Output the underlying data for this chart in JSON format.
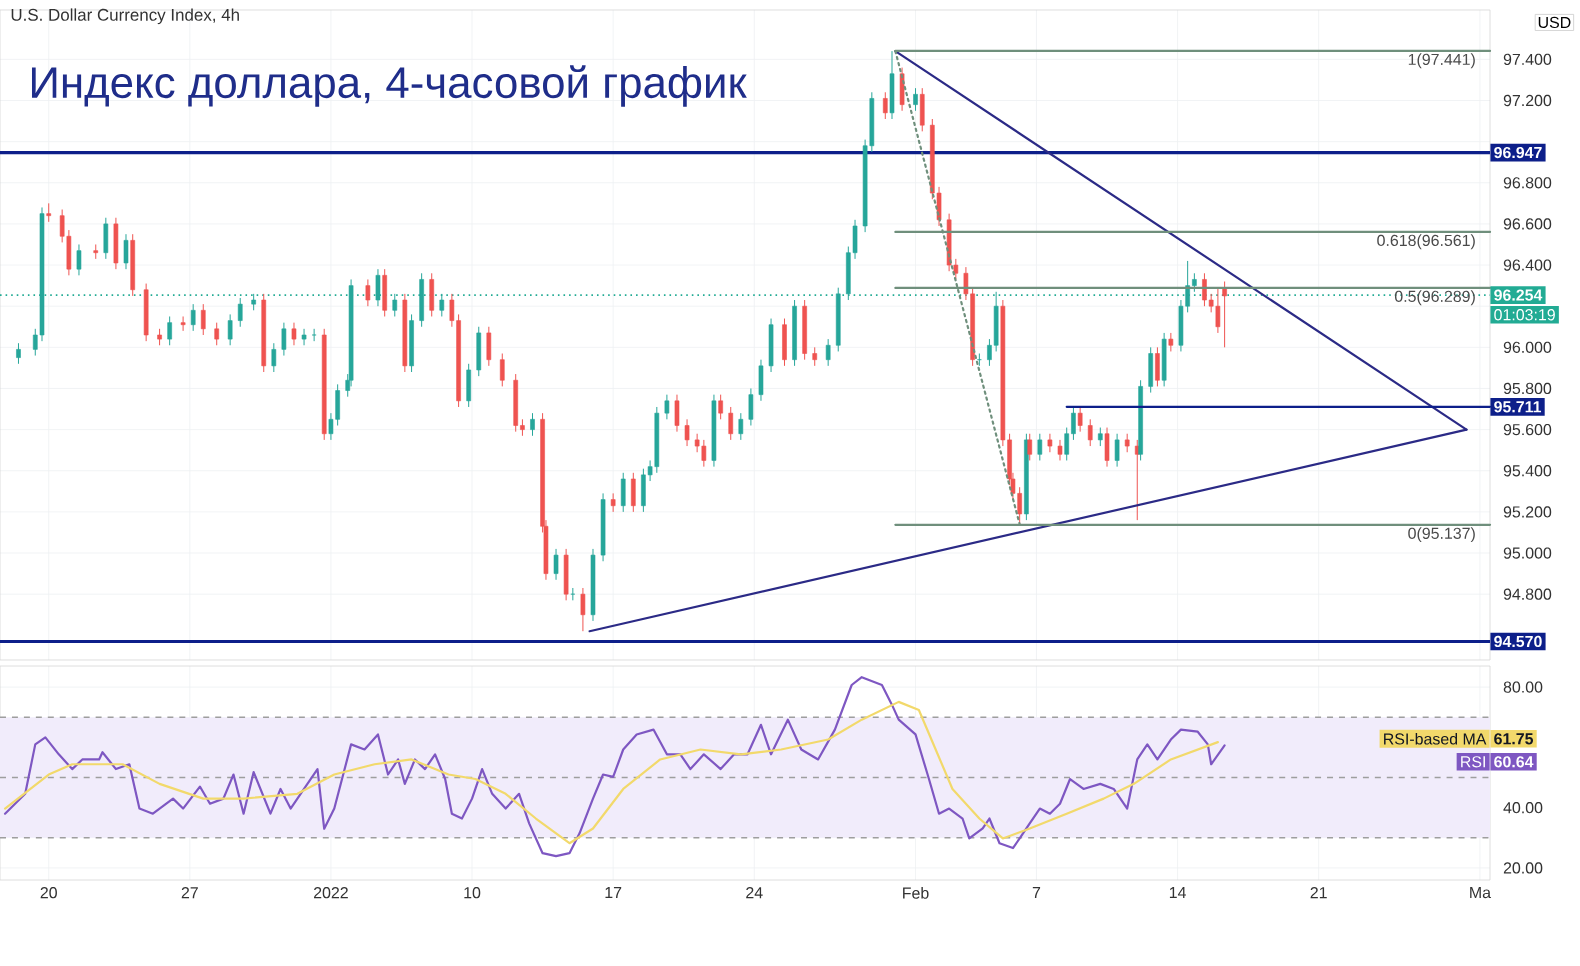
{
  "chart_data": [
    {
      "type": "candlestick",
      "title": "Индекс доллара, 4-часовой график",
      "subtitle": "U.S. Dollar Currency Index, 4h",
      "ylabel": "USD",
      "x": [
        "2021-12-18T12:00",
        "2021-12-19T08:00",
        "2021-12-19T16:00",
        "2021-12-20T00:00",
        "2021-12-20T16:00",
        "2021-12-21T00:00",
        "2021-12-21T12:00",
        "2021-12-22T08:00",
        "2021-12-22T20:00",
        "2021-12-23T08:00",
        "2021-12-23T20:00",
        "2021-12-24T04:00",
        "2021-12-24T20:00",
        "2021-12-25T12:00",
        "2021-12-26T00:00",
        "2021-12-26T16:00",
        "2021-12-27T04:00",
        "2021-12-27T16:00",
        "2021-12-28T08:00",
        "2021-12-29T00:00",
        "2021-12-29T12:00",
        "2021-12-30T04:00",
        "2021-12-30T16:00",
        "2021-12-31T04:00",
        "2021-12-31T16:00",
        "2022-01-01T04:00",
        "2022-01-01T16:00",
        "2022-01-02T04:00",
        "2022-01-02T16:00",
        "2022-01-03T00:00",
        "2022-01-03T08:00",
        "2022-01-03T20:00",
        "2022-01-04T00:00",
        "2022-01-04T20:00",
        "2022-01-05T08:00",
        "2022-01-05T16:00",
        "2022-01-06T04:00",
        "2022-01-06T16:00",
        "2022-01-07T00:00",
        "2022-01-07T12:00",
        "2022-01-08T00:00",
        "2022-01-08T12:00",
        "2022-01-09T00:00",
        "2022-01-09T08:00",
        "2022-01-09T20:00",
        "2022-01-10T08:00",
        "2022-01-10T20:00",
        "2022-01-11T12:00",
        "2022-01-12T04:00",
        "2022-01-12T12:00",
        "2022-01-13T00:00",
        "2022-01-13T12:00",
        "2022-01-13T16:00",
        "2022-01-14T04:00",
        "2022-01-14T16:00",
        "2022-01-15T00:00",
        "2022-01-15T12:00",
        "2022-01-16T00:00",
        "2022-01-16T12:00",
        "2022-01-17T00:00",
        "2022-01-17T12:00",
        "2022-01-18T00:00",
        "2022-01-18T12:00",
        "2022-01-18T20:00",
        "2022-01-19T04:00",
        "2022-01-19T16:00",
        "2022-01-20T04:00",
        "2022-01-20T16:00",
        "2022-01-21T04:00",
        "2022-01-21T12:00",
        "2022-01-22T00:00",
        "2022-01-22T08:00",
        "2022-01-22T20:00",
        "2022-01-23T08:00",
        "2022-01-23T20:00",
        "2022-01-24T08:00",
        "2022-01-24T20:00",
        "2022-01-25T12:00",
        "2022-01-26T00:00",
        "2022-01-26T12:00",
        "2022-01-27T00:00",
        "2022-01-27T16:00",
        "2022-01-28T04:00",
        "2022-01-28T16:00",
        "2022-01-29T00:00",
        "2022-01-29T12:00",
        "2022-01-29T20:00",
        "2022-01-30T12:00",
        "2022-01-30T20:00",
        "2022-01-31T08:00",
        "2022-02-01T00:00",
        "2022-02-01T08:00",
        "2022-02-01T20:00",
        "2022-02-02T04:00",
        "2022-02-02T16:00",
        "2022-02-03T00:00",
        "2022-02-03T12:00",
        "2022-02-03T20:00",
        "2022-02-04T04:00",
        "2022-02-04T16:00",
        "2022-02-05T00:00",
        "2022-02-05T08:00",
        "2022-02-05T16:00",
        "2022-02-05T20:00",
        "2022-02-06T04:00",
        "2022-02-06T12:00",
        "2022-02-06T16:00",
        "2022-02-07T04:00",
        "2022-02-07T16:00",
        "2022-02-08T04:00",
        "2022-02-08T12:00",
        "2022-02-08T20:00",
        "2022-02-09T04:00",
        "2022-02-09T16:00",
        "2022-02-10T04:00",
        "2022-02-10T12:00",
        "2022-02-11T00:00",
        "2022-02-11T12:00",
        "2022-02-12T00:00",
        "2022-02-12T04:00",
        "2022-02-12T16:00",
        "2022-02-13T00:00",
        "2022-02-13T08:00",
        "2022-02-13T16:00",
        "2022-02-14T04:00",
        "2022-02-14T12:00",
        "2022-02-14T20:00",
        "2022-02-15T08:00",
        "2022-02-15T16:00",
        "2022-02-16T00:00",
        "2022-02-16T08:00"
      ],
      "ohlc": [
        [
          95.95,
          96.02,
          95.92,
          95.99
        ],
        [
          95.99,
          96.09,
          95.96,
          96.06
        ],
        [
          96.06,
          96.68,
          96.03,
          96.65
        ],
        [
          96.65,
          96.7,
          96.61,
          96.64
        ],
        [
          96.64,
          96.67,
          96.51,
          96.54
        ],
        [
          96.54,
          96.57,
          96.35,
          96.38
        ],
        [
          96.38,
          96.5,
          96.35,
          96.47
        ],
        [
          96.47,
          96.5,
          96.43,
          96.46
        ],
        [
          96.46,
          96.63,
          96.43,
          96.6
        ],
        [
          96.6,
          96.63,
          96.38,
          96.41
        ],
        [
          96.41,
          96.55,
          96.38,
          96.52
        ],
        [
          96.52,
          96.55,
          96.25,
          96.28
        ],
        [
          96.28,
          96.31,
          96.03,
          96.06
        ],
        [
          96.06,
          96.09,
          96.01,
          96.04
        ],
        [
          96.04,
          96.15,
          96.01,
          96.12
        ],
        [
          96.12,
          96.15,
          96.08,
          96.11
        ],
        [
          96.11,
          96.21,
          96.08,
          96.18
        ],
        [
          96.18,
          96.21,
          96.06,
          96.09
        ],
        [
          96.09,
          96.12,
          96.01,
          96.04
        ],
        [
          96.04,
          96.16,
          96.01,
          96.13
        ],
        [
          96.13,
          96.24,
          96.1,
          96.21
        ],
        [
          96.21,
          96.26,
          96.18,
          96.23
        ],
        [
          96.23,
          96.26,
          95.88,
          95.91
        ],
        [
          95.91,
          96.02,
          95.88,
          95.99
        ],
        [
          95.99,
          96.12,
          95.96,
          96.09
        ],
        [
          96.09,
          96.12,
          96.01,
          96.04
        ],
        [
          96.04,
          96.09,
          96.01,
          96.06
        ],
        [
          96.06,
          96.09,
          96.03,
          96.06
        ],
        [
          96.06,
          96.09,
          95.55,
          95.58
        ],
        [
          95.58,
          95.68,
          95.55,
          95.65
        ],
        [
          95.65,
          95.82,
          95.62,
          95.79
        ],
        [
          95.79,
          95.87,
          95.76,
          95.84
        ],
        [
          95.84,
          96.33,
          95.81,
          96.3
        ],
        [
          96.3,
          96.33,
          96.2,
          96.23
        ],
        [
          96.23,
          96.38,
          96.2,
          96.35
        ],
        [
          96.35,
          96.38,
          96.15,
          96.18
        ],
        [
          96.18,
          96.26,
          96.15,
          96.23
        ],
        [
          96.23,
          96.26,
          95.88,
          95.91
        ],
        [
          95.91,
          96.16,
          95.88,
          96.13
        ],
        [
          96.13,
          96.36,
          96.1,
          96.33
        ],
        [
          96.33,
          96.36,
          96.15,
          96.18
        ],
        [
          96.18,
          96.26,
          96.15,
          96.23
        ],
        [
          96.23,
          96.26,
          96.1,
          96.13
        ],
        [
          96.13,
          96.16,
          95.71,
          95.74
        ],
        [
          95.74,
          95.92,
          95.71,
          95.89
        ],
        [
          95.89,
          96.1,
          95.86,
          96.07
        ],
        [
          96.07,
          96.1,
          95.91,
          95.94
        ],
        [
          95.94,
          95.97,
          95.81,
          95.84
        ],
        [
          95.84,
          95.87,
          95.59,
          95.62
        ],
        [
          95.62,
          95.65,
          95.57,
          95.6
        ],
        [
          95.6,
          95.68,
          95.57,
          95.65
        ],
        [
          95.65,
          95.68,
          95.1,
          95.13
        ],
        [
          95.13,
          95.16,
          94.87,
          94.9
        ],
        [
          94.9,
          95.02,
          94.87,
          94.99
        ],
        [
          94.99,
          95.02,
          94.77,
          94.8
        ],
        [
          94.8,
          94.83,
          94.77,
          94.8
        ],
        [
          94.8,
          94.83,
          94.62,
          94.7
        ],
        [
          94.7,
          95.02,
          94.67,
          94.99
        ],
        [
          94.99,
          95.29,
          94.96,
          95.26
        ],
        [
          95.26,
          95.29,
          95.2,
          95.23
        ],
        [
          95.23,
          95.39,
          95.2,
          95.36
        ],
        [
          95.36,
          95.39,
          95.2,
          95.23
        ],
        [
          95.23,
          95.41,
          95.2,
          95.38
        ],
        [
          95.38,
          95.45,
          95.35,
          95.42
        ],
        [
          95.42,
          95.71,
          95.39,
          95.68
        ],
        [
          95.68,
          95.77,
          95.65,
          95.74
        ],
        [
          95.74,
          95.77,
          95.59,
          95.62
        ],
        [
          95.62,
          95.65,
          95.52,
          95.55
        ],
        [
          95.55,
          95.58,
          95.49,
          95.52
        ],
        [
          95.52,
          95.55,
          95.42,
          95.45
        ],
        [
          95.45,
          95.77,
          95.42,
          95.74
        ],
        [
          95.74,
          95.77,
          95.65,
          95.68
        ],
        [
          95.68,
          95.71,
          95.55,
          95.58
        ],
        [
          95.58,
          95.68,
          95.55,
          95.65
        ],
        [
          95.65,
          95.8,
          95.62,
          95.77
        ],
        [
          95.77,
          95.94,
          95.74,
          95.91
        ],
        [
          95.91,
          96.14,
          95.88,
          96.11
        ],
        [
          96.11,
          96.14,
          95.91,
          95.94
        ],
        [
          95.94,
          96.23,
          95.91,
          96.2
        ],
        [
          96.2,
          96.23,
          95.94,
          95.97
        ],
        [
          95.97,
          96.0,
          95.91,
          95.94
        ],
        [
          95.94,
          96.04,
          95.91,
          96.01
        ],
        [
          96.01,
          96.29,
          95.98,
          96.26
        ],
        [
          96.26,
          96.49,
          96.23,
          96.46
        ],
        [
          96.46,
          96.62,
          96.43,
          96.59
        ],
        [
          96.59,
          97.01,
          96.56,
          96.98
        ],
        [
          96.98,
          97.24,
          96.95,
          97.21
        ],
        [
          97.21,
          97.24,
          97.11,
          97.14
        ],
        [
          97.14,
          97.44,
          97.11,
          97.33
        ],
        [
          97.33,
          97.36,
          97.15,
          97.18
        ],
        [
          97.18,
          97.26,
          97.15,
          97.23
        ],
        [
          97.23,
          97.26,
          97.05,
          97.08
        ],
        [
          97.08,
          97.11,
          96.72,
          96.75
        ],
        [
          96.75,
          96.78,
          96.59,
          96.62
        ],
        [
          96.62,
          96.65,
          96.37,
          96.4
        ],
        [
          96.4,
          96.43,
          96.33,
          96.36
        ],
        [
          96.36,
          96.39,
          96.23,
          96.26
        ],
        [
          96.26,
          96.29,
          95.91,
          95.94
        ],
        [
          95.94,
          95.97,
          95.91,
          95.94
        ],
        [
          95.94,
          96.04,
          95.91,
          96.01
        ],
        [
          96.01,
          96.27,
          95.98,
          96.2
        ],
        [
          96.2,
          96.23,
          95.52,
          95.55
        ],
        [
          95.55,
          95.58,
          95.33,
          95.36
        ],
        [
          95.36,
          95.39,
          95.26,
          95.29
        ],
        [
          95.29,
          95.32,
          95.14,
          95.19
        ],
        [
          95.19,
          95.58,
          95.16,
          95.55
        ],
        [
          95.55,
          95.58,
          95.45,
          95.48
        ],
        [
          95.48,
          95.58,
          95.45,
          95.55
        ],
        [
          95.55,
          95.58,
          95.49,
          95.52
        ],
        [
          95.52,
          95.55,
          95.45,
          95.48
        ],
        [
          95.48,
          95.61,
          95.45,
          95.58
        ],
        [
          95.58,
          95.71,
          95.55,
          95.68
        ],
        [
          95.68,
          95.71,
          95.59,
          95.62
        ],
        [
          95.62,
          95.65,
          95.52,
          95.55
        ],
        [
          95.55,
          95.61,
          95.52,
          95.58
        ],
        [
          95.58,
          95.61,
          95.42,
          95.45
        ],
        [
          95.45,
          95.58,
          95.42,
          95.55
        ],
        [
          95.55,
          95.58,
          95.49,
          95.52
        ],
        [
          95.52,
          95.55,
          95.16,
          95.48
        ],
        [
          95.48,
          95.84,
          95.45,
          95.81
        ],
        [
          95.81,
          96.0,
          95.78,
          95.97
        ],
        [
          95.97,
          96.0,
          95.81,
          95.84
        ],
        [
          95.84,
          96.07,
          95.81,
          96.04
        ],
        [
          96.04,
          96.07,
          95.98,
          96.01
        ],
        [
          96.01,
          96.23,
          95.98,
          96.2
        ],
        [
          96.2,
          96.42,
          96.17,
          96.3
        ],
        [
          96.3,
          96.36,
          96.27,
          96.33
        ],
        [
          96.33,
          96.36,
          96.2,
          96.23
        ],
        [
          96.23,
          96.26,
          96.17,
          96.2
        ],
        [
          96.2,
          96.29,
          96.07,
          96.1
        ],
        [
          96.29,
          96.32,
          96.0,
          96.25
        ]
      ],
      "series": [
        {
          "type": "line",
          "x": [
            "2022-01-31T00:00",
            "2022-02-28T08:00"
          ],
          "values": [
            97.44,
            95.6
          ],
          "color": "#2b2a86"
        },
        {
          "type": "line",
          "x": [
            "2022-01-15T20:00",
            "2022-02-28T08:00"
          ],
          "values": [
            94.62,
            95.6
          ],
          "color": "#2b2a86"
        },
        {
          "type": "line",
          "x": [
            "2022-02-08T12:00",
            "2022-03-01T12:00"
          ],
          "values": [
            95.711,
            95.711
          ],
          "color": "#0d1f8a",
          "value_labels": [
            null,
            "95.711"
          ]
        },
        {
          "type": "line",
          "x": [
            "2022-01-31T00:00",
            "2022-03-01T12:00"
          ],
          "values": [
            97.441,
            97.441
          ],
          "color": "#6f8f7c"
        },
        {
          "type": "line",
          "x": [
            "2022-01-31T00:00",
            "2022-03-01T12:00"
          ],
          "values": [
            96.561,
            96.561
          ],
          "color": "#6f8f7c"
        },
        {
          "type": "line",
          "x": [
            "2022-01-31T00:00",
            "2022-03-01T12:00"
          ],
          "values": [
            96.289,
            96.289
          ],
          "color": "#6f8f7c"
        },
        {
          "type": "line",
          "x": [
            "2022-01-31T00:00",
            "2022-03-01T12:00"
          ],
          "values": [
            95.137,
            95.137
          ],
          "color": "#6f8f7c"
        },
        {
          "type": "line",
          "x": [
            "2022-01-31T00:00",
            "2022-02-06T04:00"
          ],
          "values": [
            97.44,
            95.14
          ],
          "color": "#6f8f7c",
          "line_style": "dotted"
        }
      ],
      "ref_lines": [
        {
          "axis": "y",
          "value": 96.947,
          "label": "96.947",
          "color": "#0d1f8a"
        },
        {
          "axis": "y",
          "value": 94.57,
          "label": "94.570",
          "color": "#0d1f8a"
        },
        {
          "axis": "y",
          "value": 96.254,
          "label": "96.254",
          "color": "#22ab94",
          "line_style": "dotted"
        }
      ],
      "annotations": [
        {
          "text": "1(97.441)",
          "x": "2022-02-28T22:00",
          "y": 97.441
        },
        {
          "text": "0.618(96.561)",
          "x": "2022-02-28T22:00",
          "y": 96.561
        },
        {
          "text": "0.5(96.289)",
          "x": "2022-02-28T22:00",
          "y": 96.289
        },
        {
          "text": "0(95.137)",
          "x": "2022-02-28T22:00",
          "y": 95.137
        },
        "01:03:19"
      ],
      "xlim": [
        "2021-12-17T14:00",
        "2022-03-01T12:00"
      ],
      "xticks": [
        {
          "value": "2021-12-20",
          "label": null
        },
        {
          "value": "2021-12-27",
          "label": null
        },
        {
          "value": "2022-01-03",
          "label": null
        },
        {
          "value": "2022-01-10",
          "label": null
        },
        {
          "value": "2022-01-17",
          "label": null
        },
        {
          "value": "2022-01-24",
          "label": null
        },
        {
          "value": "2022-02-01",
          "label": null
        },
        {
          "value": "2022-02-07",
          "label": null
        },
        {
          "value": "2022-02-14",
          "label": null
        },
        {
          "value": "2022-02-21",
          "label": null
        },
        {
          "value": "2022-03-01",
          "label": null
        }
      ],
      "ylim": [
        94.48,
        97.64
      ],
      "yticks": [
        {
          "value": 94.8,
          "label": "94.800"
        },
        {
          "value": 95.0,
          "label": "95.000"
        },
        {
          "value": 95.2,
          "label": "95.200"
        },
        {
          "value": 95.4,
          "label": "95.400"
        },
        {
          "value": 95.6,
          "label": "95.600"
        },
        {
          "value": 95.8,
          "label": "95.800"
        },
        {
          "value": 96.0,
          "label": "96.000"
        },
        {
          "value": 96.2,
          "label": null
        },
        {
          "value": 96.4,
          "label": "96.400"
        },
        {
          "value": 96.6,
          "label": "96.600"
        },
        {
          "value": 96.8,
          "label": "96.800"
        },
        {
          "value": 97.0,
          "label": null
        },
        {
          "value": 97.2,
          "label": "97.200"
        },
        {
          "value": 97.4,
          "label": "97.400"
        }
      ],
      "grid": true,
      "tick_labels": "y"
    },
    {
      "type": "line",
      "series": [
        {
          "name": "RSI",
          "color": "#7e57c2",
          "x": [
            "2021-12-17T20:00",
            "2021-12-18T20:00",
            "2021-12-19T08:00",
            "2021-12-19T20:00",
            "2021-12-20T12:00",
            "2021-12-21T04:00",
            "2021-12-21T16:00",
            "2021-12-22T12:00",
            "2021-12-22T16:00",
            "2021-12-23T08:00",
            "2021-12-24T00:00",
            "2021-12-24T12:00",
            "2021-12-25T04:00",
            "2021-12-26T04:00",
            "2021-12-26T16:00",
            "2021-12-27T12:00",
            "2021-12-28T00:00",
            "2021-12-28T16:00",
            "2021-12-29T04:00",
            "2021-12-29T16:00",
            "2021-12-30T04:00",
            "2021-12-31T00:00",
            "2021-12-31T12:00",
            "2022-01-01T00:00",
            "2022-01-01T20:00",
            "2022-01-02T08:00",
            "2022-01-02T16:00",
            "2022-01-03T04:00",
            "2022-01-04T00:00",
            "2022-01-04T16:00",
            "2022-01-05T08:00",
            "2022-01-05T20:00",
            "2022-01-06T08:00",
            "2022-01-06T16:00",
            "2022-01-07T04:00",
            "2022-01-07T16:00",
            "2022-01-08T04:00",
            "2022-01-08T16:00",
            "2022-01-09T00:00",
            "2022-01-09T12:00",
            "2022-01-10T00:00",
            "2022-01-10T12:00",
            "2022-01-11T00:00",
            "2022-01-11T16:00",
            "2022-01-12T08:00",
            "2022-01-12T20:00",
            "2022-01-13T12:00",
            "2022-01-14T04:00",
            "2022-01-14T20:00",
            "2022-01-15T08:00",
            "2022-01-16T00:00",
            "2022-01-16T12:00",
            "2022-01-17T00:00",
            "2022-01-17T12:00",
            "2022-01-18T04:00",
            "2022-01-19T00:00",
            "2022-01-19T16:00",
            "2022-01-20T08:00",
            "2022-01-20T20:00",
            "2022-01-21T12:00",
            "2022-01-22T08:00",
            "2022-01-23T00:00",
            "2022-01-23T16:00",
            "2022-01-24T08:00",
            "2022-01-24T20:00",
            "2022-01-25T16:00",
            "2022-01-26T08:00",
            "2022-01-27T04:00",
            "2022-01-28T00:00",
            "2022-01-28T20:00",
            "2022-01-29T08:00",
            "2022-01-30T08:00",
            "2022-01-30T20:00",
            "2022-01-31T04:00",
            "2022-02-01T00:00",
            "2022-02-01T16:00",
            "2022-02-02T04:00",
            "2022-02-02T16:00",
            "2022-02-03T08:00",
            "2022-02-03T16:00",
            "2022-02-04T08:00",
            "2022-02-04T16:00",
            "2022-02-05T04:00",
            "2022-02-05T20:00",
            "2022-02-06T04:00",
            "2022-02-06T16:00",
            "2022-02-07T04:00",
            "2022-02-07T16:00",
            "2022-02-08T04:00",
            "2022-02-08T16:00",
            "2022-02-09T08:00",
            "2022-02-10T04:00",
            "2022-02-10T20:00",
            "2022-02-11T12:00",
            "2022-02-12T00:00",
            "2022-02-12T12:00",
            "2022-02-13T00:00",
            "2022-02-13T16:00",
            "2022-02-14T04:00",
            "2022-02-15T00:00",
            "2022-02-15T12:00",
            "2022-02-15T16:00",
            "2022-02-16T08:00"
          ],
          "values": [
            38,
            44.6,
            61,
            63.3,
            57.7,
            52.8,
            56,
            56,
            58.4,
            52.8,
            54.4,
            39.7,
            38,
            43,
            39.7,
            47,
            41.3,
            43,
            51,
            38,
            51.8,
            38,
            46.2,
            39.7,
            47.9,
            52.8,
            33,
            39.7,
            61,
            59.3,
            64.3,
            51,
            56,
            47.9,
            56,
            52.8,
            57.7,
            49.5,
            38,
            36.4,
            43,
            52.8,
            44.6,
            39.7,
            44.6,
            34.8,
            24.9,
            23.9,
            24.9,
            31.5,
            43,
            51,
            50.2,
            59.3,
            64.3,
            65.9,
            57.7,
            57.7,
            52.8,
            57.7,
            52.8,
            57.7,
            57.7,
            67.5,
            57.7,
            69.2,
            59.3,
            56,
            65.9,
            80.7,
            83.3,
            80.7,
            74.1,
            69.2,
            64.3,
            49.5,
            38,
            39.7,
            36.4,
            29.8,
            33.1,
            36.4,
            28.2,
            26.6,
            29.8,
            34.8,
            39.7,
            38,
            41.3,
            49.5,
            46.2,
            47.9,
            46.2,
            39.7,
            56,
            61,
            56,
            62.6,
            65.9,
            65.2,
            61,
            54.4,
            60.64
          ]
        },
        {
          "name": "RSI-based MA",
          "color": "#f2d96b",
          "x": [
            "2021-12-17T20:00",
            "2021-12-20T00:00",
            "2021-12-21T04:00",
            "2021-12-23T16:00",
            "2021-12-25T12:00",
            "2021-12-27T16:00",
            "2021-12-29T16:00",
            "2022-01-01T08:00",
            "2022-01-03T04:00",
            "2022-01-05T04:00",
            "2022-01-07T00:00",
            "2022-01-08T20:00",
            "2022-01-10T04:00",
            "2022-01-11T16:00",
            "2022-01-13T04:00",
            "2022-01-14T20:00",
            "2022-01-16T00:00",
            "2022-01-17T12:00",
            "2022-01-19T08:00",
            "2022-01-21T08:00",
            "2022-01-23T08:00",
            "2022-01-25T08:00",
            "2022-01-27T16:00",
            "2022-01-29T08:00",
            "2022-01-31T04:00",
            "2022-02-01T04:00",
            "2022-02-02T00:00",
            "2022-02-02T20:00",
            "2022-02-04T04:00",
            "2022-02-05T08:00",
            "2022-02-06T16:00",
            "2022-02-08T12:00",
            "2022-02-10T08:00",
            "2022-02-11T20:00",
            "2022-02-13T16:00",
            "2022-02-16T00:00"
          ],
          "values": [
            39.7,
            51,
            54.4,
            54.4,
            47.9,
            43,
            43,
            44.6,
            51,
            54.4,
            56,
            51,
            49.5,
            44.6,
            36.4,
            28.2,
            33.1,
            46.2,
            56,
            59.3,
            57.7,
            59.3,
            62.6,
            69.2,
            75.1,
            72.4,
            59.3,
            46.2,
            36.4,
            29.8,
            33.1,
            38,
            43,
            47.9,
            56,
            61.75
          ]
        }
      ],
      "legend": "right",
      "annotations": [
        "60.64",
        "61.75"
      ],
      "ref_lines": [
        {
          "axis": "y",
          "value": 70,
          "color": "#9e9e9e",
          "line_style": "dashed"
        },
        {
          "axis": "y",
          "value": 50,
          "color": "#9e9e9e",
          "line_style": "dashed"
        },
        {
          "axis": "y",
          "value": 30,
          "color": "#9e9e9e",
          "line_style": "dashed"
        }
      ],
      "bands": [
        {
          "axis": "y",
          "from": 30,
          "to": 70,
          "color": "#f1ecfb"
        }
      ],
      "xlim": [
        "2021-12-17T14:00",
        "2022-03-01T12:00"
      ],
      "xticks": [
        {
          "value": "2021-12-20",
          "label": "20"
        },
        {
          "value": "2021-12-27",
          "label": "27"
        },
        {
          "value": "2022-01-03",
          "label": "2022"
        },
        {
          "value": "2022-01-10",
          "label": "10"
        },
        {
          "value": "2022-01-17",
          "label": "17"
        },
        {
          "value": "2022-01-24",
          "label": "24"
        },
        {
          "value": "2022-02-01",
          "label": "Feb"
        },
        {
          "value": "2022-02-07",
          "label": "7"
        },
        {
          "value": "2022-02-14",
          "label": "14"
        },
        {
          "value": "2022-02-21",
          "label": "21"
        },
        {
          "value": "2022-03-01",
          "label": "Ma"
        }
      ],
      "ylim": [
        16,
        87
      ],
      "yticks": [
        {
          "value": 20,
          "label": "20.00"
        },
        {
          "value": 40,
          "label": "40.00"
        },
        {
          "value": 60,
          "label": null
        },
        {
          "value": 80,
          "label": "80.00"
        }
      ],
      "grid": true
    }
  ]
}
